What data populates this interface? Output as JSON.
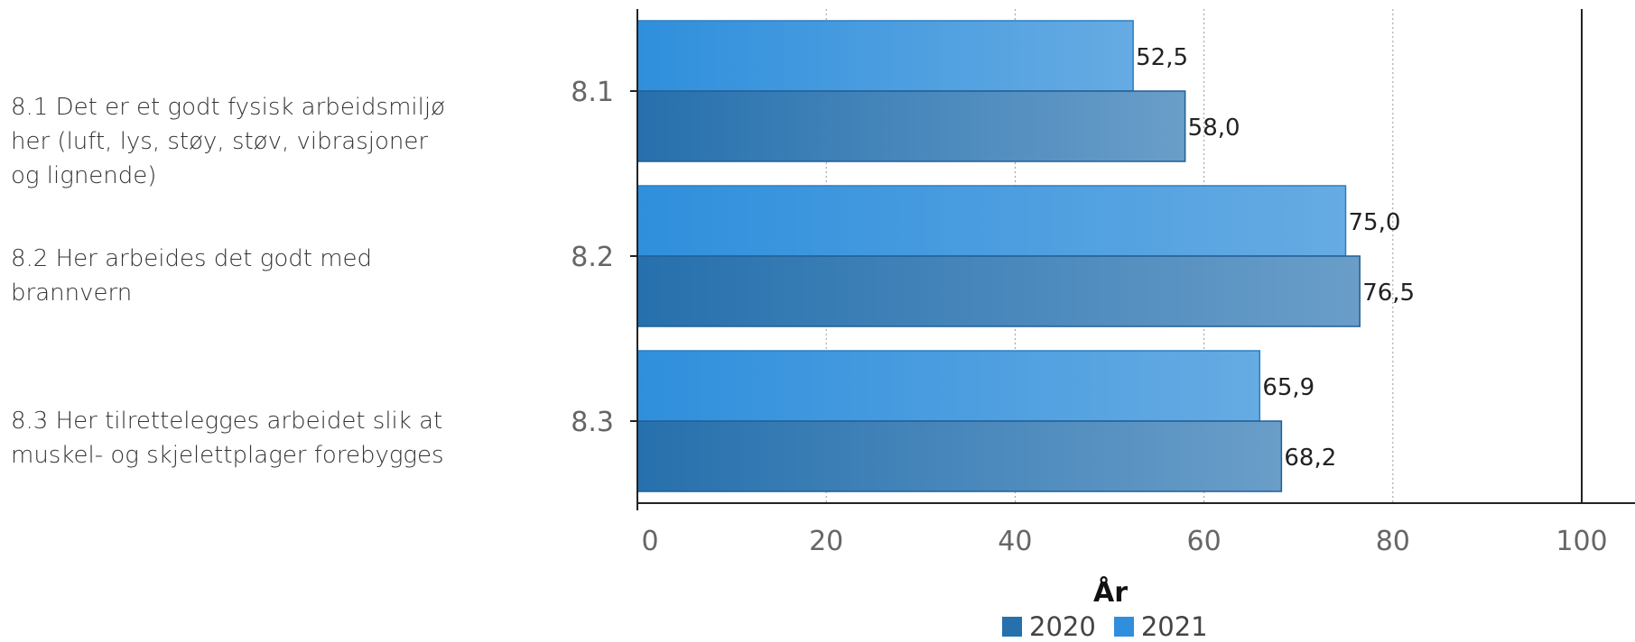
{
  "questions": [
    {
      "text": "8.1 Det er et godt fysisk arbeidsmiljø her (luft, lys, støy, støv, vibrasjoner og lignende)"
    },
    {
      "text": "8.2 Her arbeides det godt med brannvern"
    },
    {
      "text": "8.3 Her tilrettelegges arbeidet slik at muskel- og skjelettplager forebygges"
    }
  ],
  "chart_data": {
    "type": "bar",
    "orientation": "horizontal",
    "categories": [
      "8.1",
      "8.2",
      "8.3"
    ],
    "series": [
      {
        "name": "2021",
        "values": [
          52.5,
          75.0,
          65.9
        ],
        "labels": [
          "52,5",
          "75,0",
          "65,9"
        ],
        "color": "#2f8fdc"
      },
      {
        "name": "2020",
        "values": [
          58.0,
          76.5,
          68.2
        ],
        "labels": [
          "58,0",
          "76,5",
          "68,2"
        ],
        "color": "#2670ad"
      }
    ],
    "xlabel": "År",
    "xlim": [
      0,
      100
    ],
    "xticks": [
      "0",
      "20",
      "40",
      "60",
      "80",
      "100"
    ],
    "grid": true,
    "legend_position": "bottom",
    "legend_order": [
      "2020",
      "2021"
    ]
  }
}
